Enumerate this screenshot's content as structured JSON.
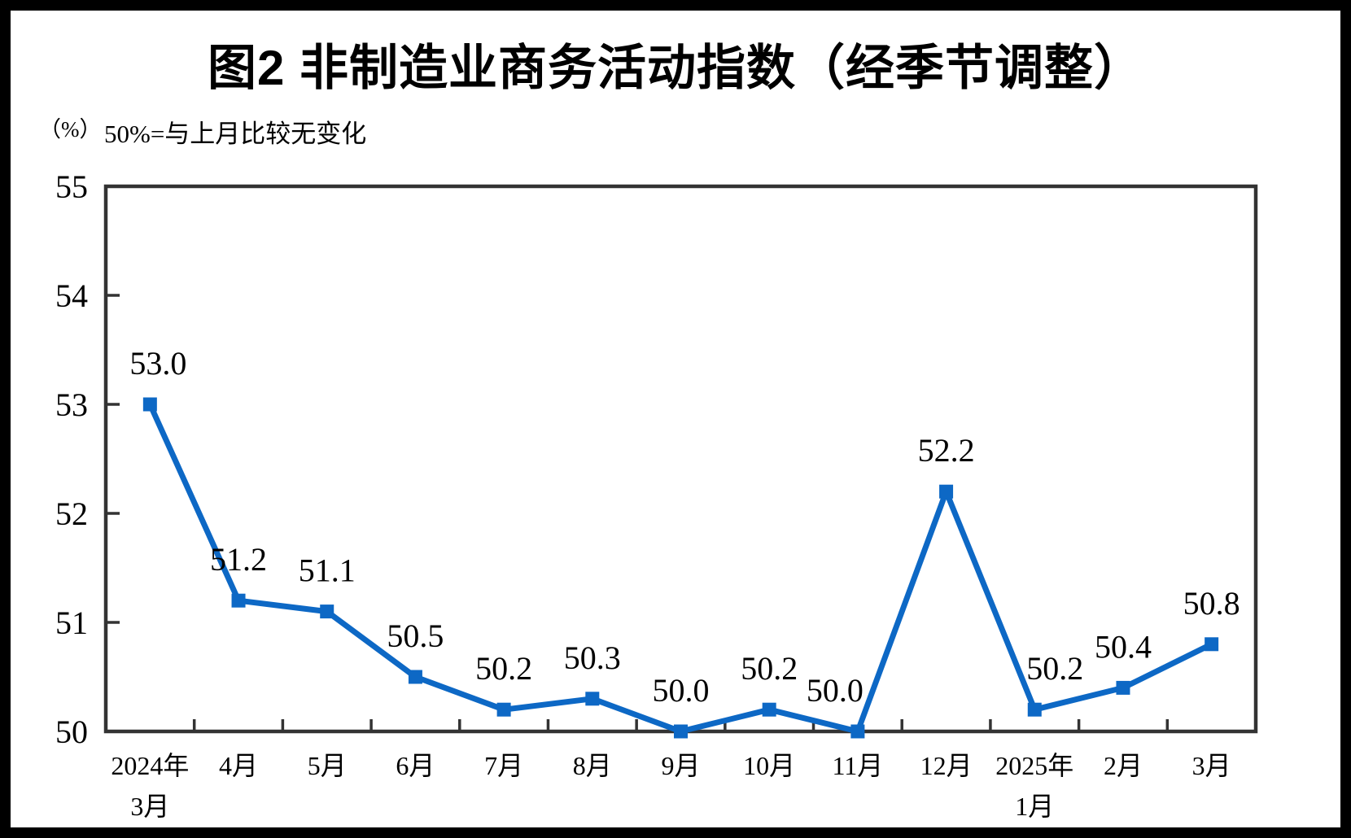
{
  "chart_data": {
    "type": "line",
    "title": "图2 非制造业商务活动指数（经季节调整）",
    "unit_label": "（%）",
    "subtitle": "50%=与上月比较无变化",
    "categories": [
      [
        "2024年",
        "3月"
      ],
      [
        "4月"
      ],
      [
        "5月"
      ],
      [
        "6月"
      ],
      [
        "7月"
      ],
      [
        "8月"
      ],
      [
        "9月"
      ],
      [
        "10月"
      ],
      [
        "11月"
      ],
      [
        "12月"
      ],
      [
        "2025年",
        "1月"
      ],
      [
        "2月"
      ],
      [
        "3月"
      ]
    ],
    "values": [
      53.0,
      51.2,
      51.1,
      50.5,
      50.2,
      50.3,
      50.0,
      50.2,
      50.0,
      52.2,
      50.2,
      50.4,
      50.8
    ],
    "data_labels": [
      "53.0",
      "51.2",
      "51.1",
      "50.5",
      "50.2",
      "50.3",
      "50.0",
      "50.2",
      "50.0",
      "52.2",
      "50.2",
      "50.4",
      "50.8"
    ],
    "data_label_dx": [
      10,
      0,
      0,
      0,
      0,
      0,
      0,
      0,
      -28,
      0,
      25,
      0,
      0
    ],
    "ylim": [
      50,
      55
    ],
    "yticks": [
      50,
      51,
      52,
      53,
      54,
      55
    ],
    "xlabel": "",
    "ylabel": "",
    "grid": false,
    "legend_position": "none",
    "marker": "square",
    "series_color": "#0d68c5",
    "axis_color": "#333333",
    "text_color": "#000000"
  }
}
